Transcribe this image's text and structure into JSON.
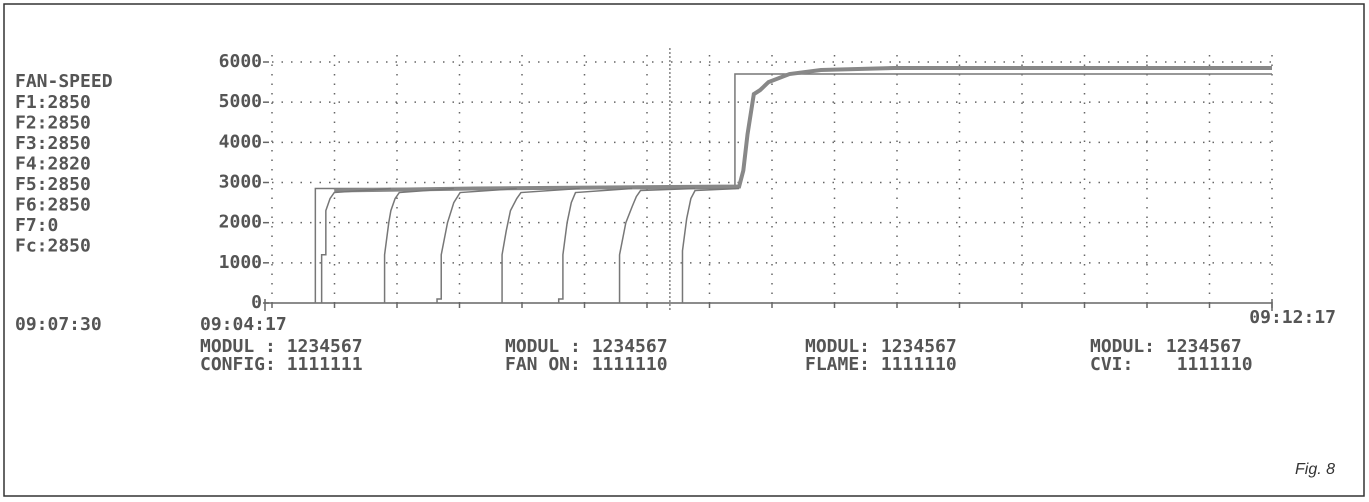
{
  "chart_data": {
    "type": "line",
    "panel_title": "FAN-SPEED",
    "readings": [
      "F1:2850",
      "F2:2850",
      "F3:2850",
      "F4:2820",
      "F5:2850",
      "F6:2850",
      "F7:0",
      "Fc:2850"
    ],
    "cursor": {
      "x": 193,
      "label": "09:07:30"
    },
    "xlim": [
      0,
      480
    ],
    "xticks": [
      {
        "value": 0,
        "label": "09:04:17"
      },
      {
        "value": 480,
        "label": "09:12:17"
      }
    ],
    "ylim": [
      0,
      6000
    ],
    "yticks": [
      0,
      1000,
      2000,
      3000,
      4000,
      5000,
      6000
    ],
    "grid": true,
    "series": [
      {
        "color": "#777",
        "width": 1.5,
        "x": [
          24,
          24,
          224,
          224,
          480
        ],
        "values": [
          0,
          2850,
          2850,
          5700,
          5700
        ]
      },
      {
        "color": "#888",
        "width": 4,
        "x": [
          33,
          100,
          226,
          228,
          230,
          233,
          236,
          240,
          250,
          265,
          300,
          480
        ],
        "values": [
          2800,
          2850,
          2900,
          3300,
          4200,
          5200,
          5300,
          5500,
          5700,
          5800,
          5850,
          5850
        ]
      },
      {
        "color": "#777",
        "width": 1.5,
        "x": [
          27,
          27,
          29,
          29,
          31,
          33,
          60
        ],
        "values": [
          0,
          1200,
          1200,
          2300,
          2600,
          2750,
          2850
        ]
      },
      {
        "color": "#777",
        "width": 1.5,
        "x": [
          57,
          57,
          59,
          60,
          62,
          64,
          90
        ],
        "values": [
          0,
          1200,
          2000,
          2300,
          2600,
          2750,
          2850
        ]
      },
      {
        "color": "#777",
        "width": 1.5,
        "x": [
          82,
          82,
          84,
          84,
          87,
          90,
          93,
          120
        ],
        "values": [
          0,
          100,
          100,
          1200,
          2000,
          2500,
          2750,
          2850
        ]
      },
      {
        "color": "#777",
        "width": 1.5,
        "x": [
          113,
          113,
          115,
          117,
          120,
          122,
          150
        ],
        "values": [
          0,
          1200,
          1800,
          2300,
          2600,
          2750,
          2850
        ]
      },
      {
        "color": "#777",
        "width": 1.5,
        "x": [
          140,
          140,
          142,
          142,
          144,
          146,
          148,
          175
        ],
        "values": [
          0,
          100,
          100,
          1200,
          2000,
          2500,
          2750,
          2850
        ]
      },
      {
        "color": "#777",
        "width": 1.5,
        "x": [
          169,
          169,
          172,
          175,
          177,
          179,
          205
        ],
        "values": [
          0,
          1200,
          2000,
          2400,
          2650,
          2800,
          2850
        ]
      },
      {
        "color": "#777",
        "width": 1.5,
        "x": [
          199,
          199,
          201,
          203,
          205,
          226
        ],
        "values": [
          0,
          1300,
          2100,
          2600,
          2800,
          2850
        ]
      }
    ],
    "modules": [
      {
        "line1": "MODUL : 1234567",
        "line2": "CONFIG: 1111111"
      },
      {
        "line1": "MODUL : 1234567",
        "line2": "FAN ON: 1111110"
      },
      {
        "line1": "MODUL: 1234567",
        "line2": "FLAME: 1111110"
      },
      {
        "line1": "MODUL: 1234567",
        "line2": "CVI:    1111110"
      }
    ]
  },
  "caption": "Fig. 8"
}
